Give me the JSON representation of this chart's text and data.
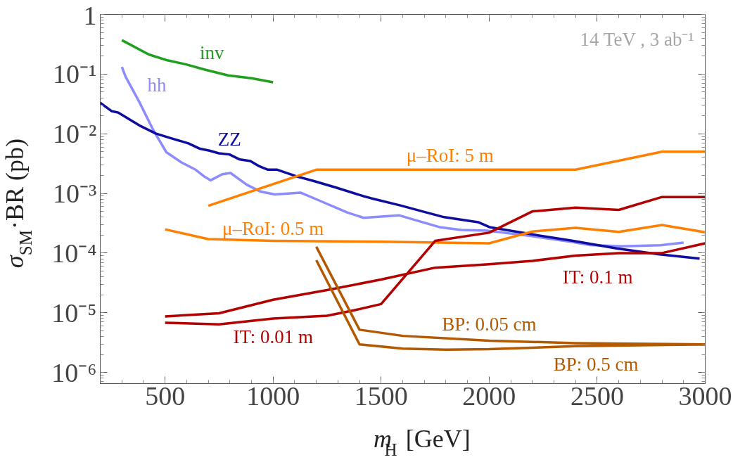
{
  "chart_data": {
    "type": "line",
    "xlabel": "m$_{H}$ [GeV]",
    "ylabel": "σ$_{SM}$·BR (pb)",
    "log": "y",
    "grid": false,
    "legend": false,
    "line_style": "solid",
    "marker": "none",
    "xlim": [
      200,
      3000
    ],
    "ylim": [
      6.5e-07,
      1
    ],
    "xticks": [
      500,
      1000,
      1500,
      2000,
      2500,
      3000
    ],
    "yticks": [
      {
        "value": 1e-06,
        "label": "10⁻⁶"
      },
      {
        "value": 1e-05,
        "label": "10⁻⁵"
      },
      {
        "value": 0.0001,
        "label": "10⁻⁴"
      },
      {
        "value": 0.001,
        "label": "10⁻³"
      },
      {
        "value": 0.01,
        "label": "10⁻²"
      },
      {
        "value": 0.1,
        "label": "10⁻¹"
      },
      1
    ],
    "series": [
      {
        "name": "inv",
        "color": "#1fa01f",
        "x": [
          300,
          425,
          511,
          598,
          684,
          792,
          900,
          1000
        ],
        "values": [
          0.37,
          0.213,
          0.17,
          0.145,
          0.119,
          0.095,
          0.085,
          0.073
        ]
      },
      {
        "name": "hh",
        "color": "#8c8cff",
        "x": [
          300,
          317,
          381,
          445,
          506,
          576,
          641,
          679,
          711,
          765,
          803,
          878,
          943,
          1008,
          1127,
          1203,
          1343,
          1419,
          1582,
          1775,
          1870,
          1994,
          2185,
          2388,
          2467,
          2613,
          2793,
          2900
        ],
        "values": [
          0.132,
          0.091,
          0.034,
          0.0116,
          0.0049,
          0.0033,
          0.0025,
          0.00195,
          0.00166,
          0.0021,
          0.0022,
          0.0014,
          0.00107,
          0.00096,
          0.00103,
          0.00079,
          0.00048,
          0.00039,
          0.00043,
          0.00027,
          0.000245,
          0.000237,
          0.000195,
          0.000153,
          0.000136,
          0.00013,
          0.000135,
          0.00015
        ]
      },
      {
        "name": "ZZ",
        "color": "#0d0d9f",
        "x": [
          200,
          252,
          284,
          381,
          457,
          533,
          608,
          662,
          706,
          749,
          798,
          846,
          895,
          932,
          976,
          1019,
          1105,
          1192,
          1289,
          1418,
          1454,
          1589,
          1691,
          1792,
          1949,
          2005,
          2185,
          2388,
          2590,
          2782,
          2974
        ],
        "values": [
          0.033,
          0.024,
          0.0226,
          0.0138,
          0.0101,
          0.0083,
          0.0069,
          0.0056,
          0.0052,
          0.0047,
          0.0045,
          0.0037,
          0.0035,
          0.0029,
          0.0025,
          0.0025,
          0.00195,
          0.0016,
          0.00126,
          0.0009,
          0.00083,
          0.00063,
          0.0005,
          0.0004,
          0.00033,
          0.00027,
          0.00021,
          0.00016,
          0.00012,
          9.6e-05,
          8.1e-05
        ]
      },
      {
        "name": "μ–RoI: 5 m",
        "color": "#ff8000",
        "x": [
          700,
          1200,
          2400,
          2800,
          3000
        ],
        "values": [
          0.00062,
          0.0025,
          0.0025,
          0.005,
          0.005
        ]
      },
      {
        "name": "μ–RoI: 0.5 m",
        "color": "#ff8000",
        "x": [
          500,
          700,
          1000,
          1500,
          2000,
          2200,
          2400,
          2600,
          2800,
          3000
        ],
        "values": [
          0.00025,
          0.000172,
          0.00016,
          0.000155,
          0.000146,
          0.00023,
          0.000265,
          0.000227,
          0.000295,
          0.000224
        ]
      },
      {
        "name": "IT: 0.1 m",
        "color": "#b30000",
        "x": [
          500,
          750,
          1000,
          1250,
          1500,
          1750,
          2000,
          2200,
          2400,
          2600,
          2800,
          3000
        ],
        "values": [
          8.7e-06,
          9.8e-06,
          1.65e-05,
          2.4e-05,
          3.6e-05,
          5.7e-05,
          6.5e-05,
          7.4e-05,
          9.1e-05,
          0.0001,
          0.0001,
          0.000146
        ]
      },
      {
        "name": "IT: 0.01 m",
        "color": "#b30000",
        "x": [
          500,
          750,
          1000,
          1250,
          1375,
          1500,
          1750,
          2000,
          2200,
          2400,
          2600,
          2800,
          3000
        ],
        "values": [
          6.8e-06,
          6.4e-06,
          8e-06,
          8.9e-06,
          1.1e-05,
          1.4e-05,
          0.00016,
          0.00022,
          0.0005,
          0.00058,
          0.00053,
          0.00087,
          0.00087
        ]
      },
      {
        "name": "BP: 0.05 cm",
        "color": "#b35900",
        "x": [
          1200,
          1400,
          1600,
          2000,
          2400,
          3000
        ],
        "values": [
          0.000128,
          5.2e-06,
          4.1e-06,
          3.4e-06,
          3.1e-06,
          2.95e-06
        ]
      },
      {
        "name": "BP: 0.5 cm",
        "color": "#b35900",
        "x": [
          1200,
          1400,
          1600,
          1800,
          2000,
          2400,
          3000
        ],
        "values": [
          7.6e-05,
          2.95e-06,
          2.5e-06,
          2.4e-06,
          2.45e-06,
          2.75e-06,
          2.95e-06
        ]
      }
    ],
    "annotations": [
      "14 TeV , 3 ab⁻¹"
    ]
  }
}
